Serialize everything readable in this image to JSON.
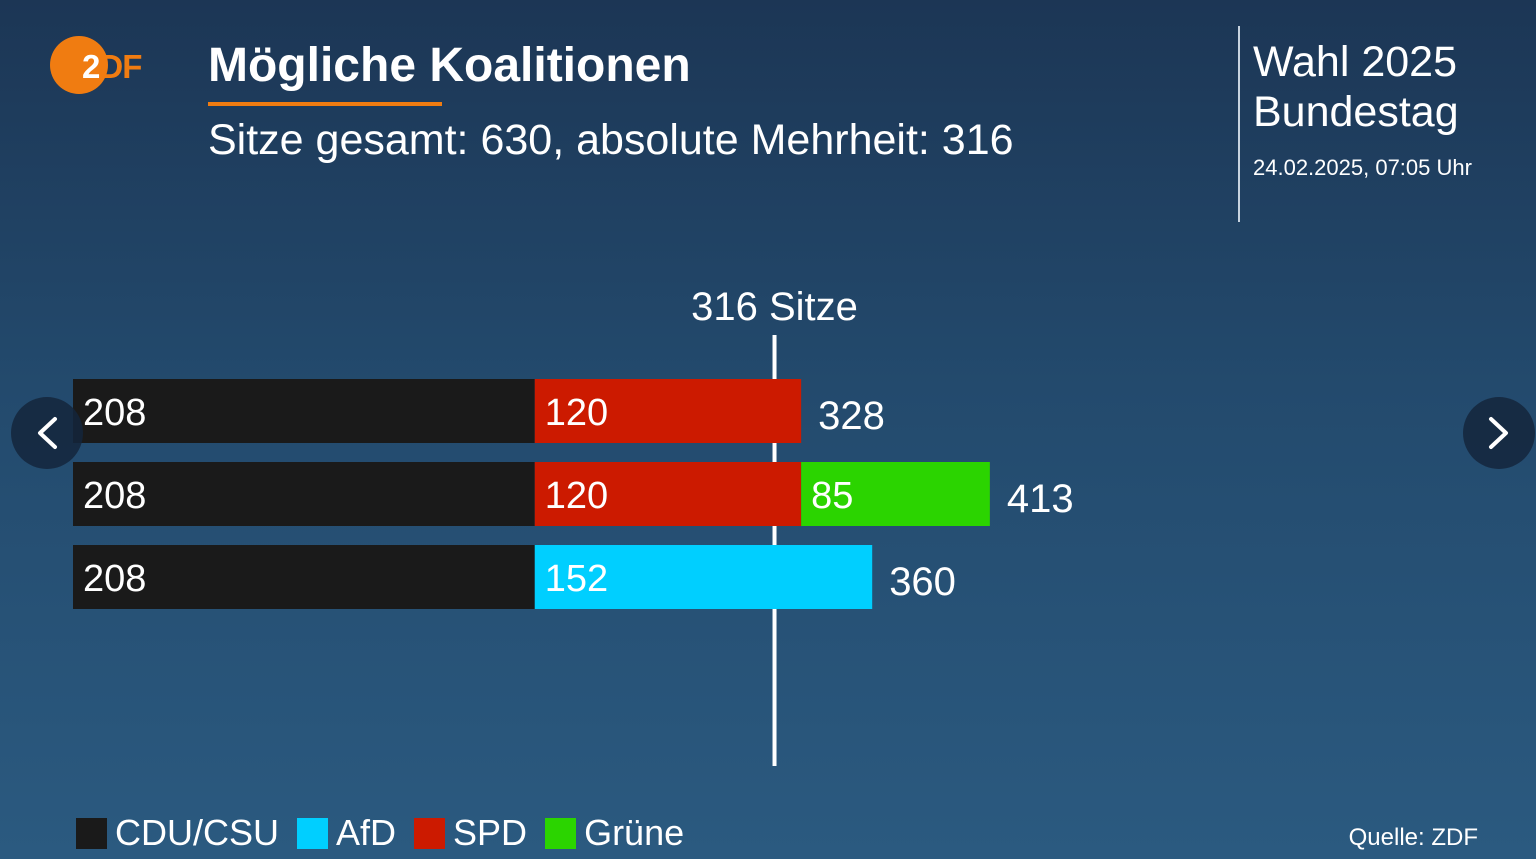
{
  "logo": {
    "text_two": "2",
    "text_rest": "DF"
  },
  "header": {
    "title": "Mögliche Koalitionen",
    "subtitle": "Sitze gesamt: 630, absolute Mehrheit: 316"
  },
  "election": {
    "line1": "Wahl 2025",
    "line2": "Bundestag",
    "date": "24.02.2025, 07:05 Uhr"
  },
  "navigation": {
    "prev_icon": "chevron-left-icon",
    "next_icon": "chevron-right-icon"
  },
  "chart_data": {
    "type": "bar",
    "orientation": "horizontal-stacked",
    "xlim": [
      0,
      630
    ],
    "majority": {
      "value": 316,
      "label": "316 Sitze"
    },
    "parties": [
      {
        "name": "CDU/CSU",
        "color": "#1a1a1a"
      },
      {
        "name": "AfD",
        "color": "#00cfff"
      },
      {
        "name": "SPD",
        "color": "#cc1a00"
      },
      {
        "name": "Grüne",
        "color": "#2bd400"
      }
    ],
    "coalitions": [
      {
        "segments": [
          {
            "party": "CDU/CSU",
            "value": 208
          },
          {
            "party": "SPD",
            "value": 120
          }
        ],
        "total": 328
      },
      {
        "segments": [
          {
            "party": "CDU/CSU",
            "value": 208
          },
          {
            "party": "SPD",
            "value": 120
          },
          {
            "party": "Grüne",
            "value": 85
          }
        ],
        "total": 413
      },
      {
        "segments": [
          {
            "party": "CDU/CSU",
            "value": 208
          },
          {
            "party": "AfD",
            "value": 152
          }
        ],
        "total": 360
      }
    ]
  },
  "legend": {
    "items": [
      {
        "label": "CDU/CSU",
        "color": "#1a1a1a"
      },
      {
        "label": "AfD",
        "color": "#00cfff"
      },
      {
        "label": "SPD",
        "color": "#cc1a00"
      },
      {
        "label": "Grüne",
        "color": "#2bd400"
      }
    ]
  },
  "source": "Quelle: ZDF"
}
